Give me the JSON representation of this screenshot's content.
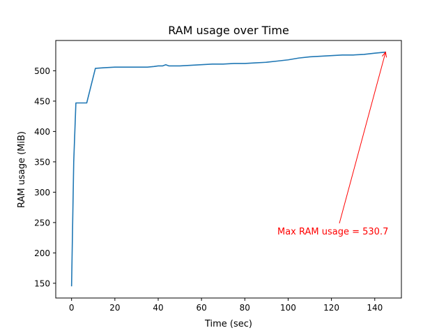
{
  "chart_data": {
    "type": "line",
    "title": "RAM usage over Time",
    "xlabel": "Time (sec)",
    "ylabel": "RAM usage (MiB)",
    "xlim": [
      -7.3,
      152.3
    ],
    "ylim": [
      125.7,
      549.9
    ],
    "xticks": [
      0,
      20,
      40,
      60,
      80,
      100,
      120,
      140
    ],
    "yticks": [
      150,
      200,
      250,
      300,
      350,
      400,
      450,
      500
    ],
    "grid": false,
    "line_color": "#1f77b4",
    "series": [
      {
        "x": [
          0,
          1,
          2,
          4,
          7,
          11,
          15,
          20,
          25,
          30,
          35,
          38,
          40,
          42,
          43.5,
          45,
          50,
          55,
          60,
          65,
          70,
          75,
          80,
          85,
          90,
          95,
          100,
          105,
          110,
          115,
          120,
          125,
          130,
          135,
          140,
          145
        ],
        "y": [
          145,
          350,
          447,
          447,
          447,
          504,
          505,
          506,
          506,
          506,
          506,
          507,
          508,
          508,
          510,
          508,
          508,
          509,
          510,
          511,
          511,
          512,
          512,
          513,
          514,
          516,
          518,
          521,
          523,
          524,
          525,
          526,
          526,
          527,
          529,
          530.7
        ]
      }
    ],
    "annotation": {
      "text": "Max RAM usage = 530.7",
      "point": [
        145,
        530.7
      ],
      "text_anchor": [
        95,
        235
      ],
      "color": "#ff0000"
    }
  }
}
